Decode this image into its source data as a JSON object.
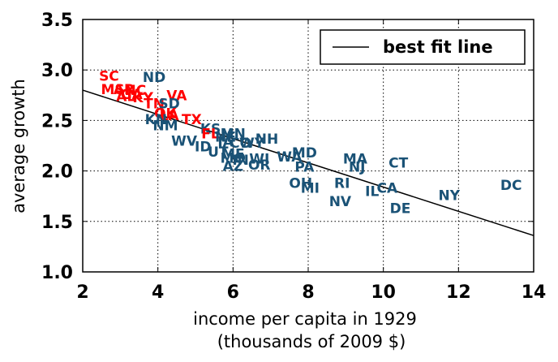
{
  "chart_data": {
    "type": "scatter",
    "xlabel_line1": "income per capita in 1929",
    "xlabel_line2": "(thousands of 2009 $)",
    "ylabel": "average growth",
    "xlim": [
      2,
      14
    ],
    "ylim": [
      1.0,
      3.5
    ],
    "x_ticks": [
      2,
      4,
      6,
      8,
      10,
      12,
      14
    ],
    "y_ticks": [
      1.0,
      1.5,
      2.0,
      2.5,
      3.0,
      3.5
    ],
    "x_tick_labels": [
      "2",
      "4",
      "6",
      "8",
      "10",
      "12",
      "14"
    ],
    "y_tick_labels": [
      "1.0",
      "1.5",
      "2.0",
      "2.5",
      "3.0",
      "3.5"
    ],
    "grid": true,
    "legend": {
      "position": "top-right",
      "entries": [
        "best fit line"
      ]
    },
    "best_fit_line": {
      "x": [
        2,
        14
      ],
      "y": [
        2.8,
        1.36
      ]
    },
    "colors": {
      "south": "#ff0000",
      "other": "#1a5276",
      "line": "#000000"
    },
    "points": [
      {
        "label": "SC",
        "x": 2.7,
        "y": 2.94,
        "group": "south"
      },
      {
        "label": "ND",
        "x": 3.9,
        "y": 2.93,
        "group": "other"
      },
      {
        "label": "MS",
        "x": 2.8,
        "y": 2.81,
        "group": "south"
      },
      {
        "label": "AR",
        "x": 3.1,
        "y": 2.81,
        "group": "south"
      },
      {
        "label": "NC",
        "x": 3.4,
        "y": 2.8,
        "group": "south"
      },
      {
        "label": "GA",
        "x": 3.3,
        "y": 2.76,
        "group": "south"
      },
      {
        "label": "AL",
        "x": 3.15,
        "y": 2.74,
        "group": "south"
      },
      {
        "label": "KY",
        "x": 3.6,
        "y": 2.73,
        "group": "south"
      },
      {
        "label": "VA",
        "x": 4.5,
        "y": 2.75,
        "group": "south"
      },
      {
        "label": "TN",
        "x": 3.9,
        "y": 2.67,
        "group": "south"
      },
      {
        "label": "SD",
        "x": 4.3,
        "y": 2.67,
        "group": "other"
      },
      {
        "label": "OK",
        "x": 4.2,
        "y": 2.57,
        "group": "south"
      },
      {
        "label": "LA",
        "x": 4.3,
        "y": 2.55,
        "group": "south"
      },
      {
        "label": "KN",
        "x": 3.95,
        "y": 2.51,
        "group": "other"
      },
      {
        "label": "TX",
        "x": 4.9,
        "y": 2.51,
        "group": "south"
      },
      {
        "label": "NM",
        "x": 4.2,
        "y": 2.45,
        "group": "other"
      },
      {
        "label": "KS",
        "x": 5.4,
        "y": 2.42,
        "group": "other"
      },
      {
        "label": "FL",
        "x": 5.4,
        "y": 2.37,
        "group": "south"
      },
      {
        "label": "MN",
        "x": 6.0,
        "y": 2.37,
        "group": "other"
      },
      {
        "label": "NE",
        "x": 5.8,
        "y": 2.34,
        "group": "other"
      },
      {
        "label": "IA",
        "x": 5.8,
        "y": 2.29,
        "group": "other"
      },
      {
        "label": "CO",
        "x": 6.2,
        "y": 2.28,
        "group": "other"
      },
      {
        "label": "WY",
        "x": 6.5,
        "y": 2.28,
        "group": "other"
      },
      {
        "label": "NH",
        "x": 6.9,
        "y": 2.32,
        "group": "other"
      },
      {
        "label": "WV",
        "x": 4.7,
        "y": 2.3,
        "group": "other"
      },
      {
        "label": "ID",
        "x": 5.2,
        "y": 2.24,
        "group": "other"
      },
      {
        "label": "UT",
        "x": 5.6,
        "y": 2.19,
        "group": "other"
      },
      {
        "label": "ME",
        "x": 6.0,
        "y": 2.17,
        "group": "other"
      },
      {
        "label": "MO",
        "x": 6.0,
        "y": 2.13,
        "group": "other"
      },
      {
        "label": "IN",
        "x": 6.2,
        "y": 2.11,
        "group": "other"
      },
      {
        "label": "WI",
        "x": 6.7,
        "y": 2.12,
        "group": "other"
      },
      {
        "label": "AZ",
        "x": 6.0,
        "y": 2.05,
        "group": "other"
      },
      {
        "label": "OR",
        "x": 6.7,
        "y": 2.06,
        "group": "other"
      },
      {
        "label": "WA",
        "x": 7.5,
        "y": 2.14,
        "group": "other"
      },
      {
        "label": "MD",
        "x": 7.9,
        "y": 2.18,
        "group": "other"
      },
      {
        "label": "PA",
        "x": 7.9,
        "y": 2.04,
        "group": "other"
      },
      {
        "label": "MA",
        "x": 9.25,
        "y": 2.12,
        "group": "other"
      },
      {
        "label": "NJ",
        "x": 9.3,
        "y": 2.04,
        "group": "other"
      },
      {
        "label": "CT",
        "x": 10.4,
        "y": 2.08,
        "group": "other"
      },
      {
        "label": "OH",
        "x": 7.8,
        "y": 1.88,
        "group": "other"
      },
      {
        "label": "MI",
        "x": 8.05,
        "y": 1.83,
        "group": "other"
      },
      {
        "label": "RI",
        "x": 8.9,
        "y": 1.88,
        "group": "other"
      },
      {
        "label": "CA",
        "x": 10.1,
        "y": 1.83,
        "group": "other"
      },
      {
        "label": "IL",
        "x": 9.7,
        "y": 1.8,
        "group": "other"
      },
      {
        "label": "NV",
        "x": 8.85,
        "y": 1.7,
        "group": "other"
      },
      {
        "label": "DE",
        "x": 10.45,
        "y": 1.63,
        "group": "other"
      },
      {
        "label": "NY",
        "x": 11.75,
        "y": 1.76,
        "group": "other"
      },
      {
        "label": "DC",
        "x": 13.4,
        "y": 1.86,
        "group": "other"
      }
    ]
  }
}
